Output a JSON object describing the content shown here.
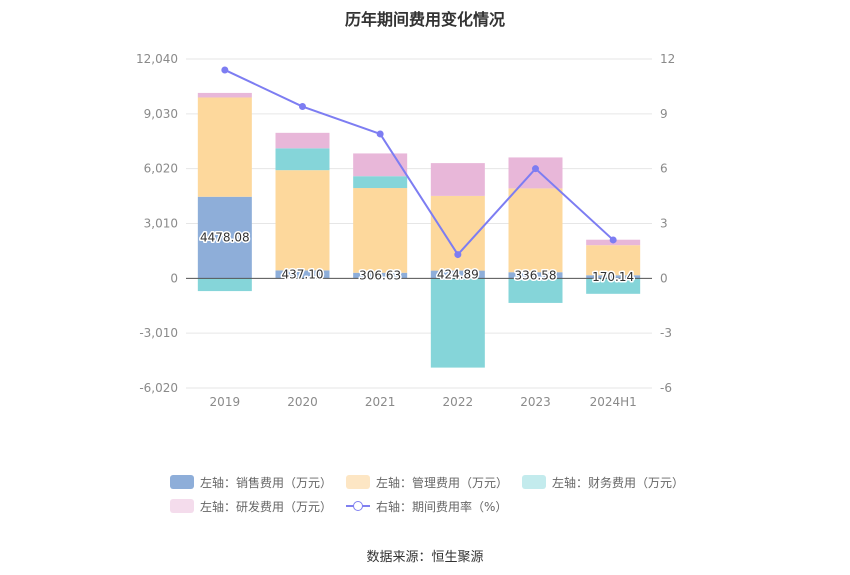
{
  "title": "历年期间费用变化情况",
  "source_text": "数据来源：恒生聚源",
  "colors": {
    "sales": "#8eaed9",
    "admin": "#fdd89c",
    "finance": "#85d5d9",
    "rnd": "#e8b7d9",
    "rate_line": "#7d7df2",
    "grid": "#e6e6e6"
  },
  "legend": [
    {
      "key": "sales",
      "label": "左轴：销售费用（万元）",
      "kind": "bar"
    },
    {
      "key": "admin",
      "label": "左轴：管理费用（万元）",
      "kind": "bar"
    },
    {
      "key": "finance",
      "label": "左轴：财务费用（万元）",
      "kind": "bar"
    },
    {
      "key": "rnd",
      "label": "左轴：研发费用（万元）",
      "kind": "bar"
    },
    {
      "key": "rate_line",
      "label": "右轴：期间费用率（%）",
      "kind": "line"
    }
  ],
  "chart_data": {
    "type": "bar",
    "stacked": true,
    "categories": [
      "2019",
      "2020",
      "2021",
      "2022",
      "2023",
      "2024H1"
    ],
    "y_left": {
      "min": -6020,
      "max": 12040,
      "ticks": [
        -6020,
        -3010,
        0,
        3010,
        6020,
        9030,
        12040
      ],
      "tick_labels": [
        "-6,020",
        "-3,010",
        "0",
        "3,010",
        "6,020",
        "9,030",
        "12,040"
      ]
    },
    "y_right": {
      "min": -6,
      "max": 12,
      "ticks": [
        -6,
        -3,
        0,
        3,
        6,
        9,
        12
      ],
      "tick_labels": [
        "-6",
        "-3",
        "0",
        "3",
        "6",
        "9",
        "12"
      ]
    },
    "series": [
      {
        "name": "左轴：销售费用（万元）",
        "key": "sales",
        "axis": "left",
        "values": [
          4478.08,
          437.1,
          306.63,
          424.89,
          336.58,
          170.14
        ],
        "labels": [
          "4478.08",
          "437.10",
          "306.63",
          "424.89",
          "336.58",
          "170.14"
        ]
      },
      {
        "name": "左轴：管理费用（万元）",
        "key": "admin",
        "axis": "left",
        "values": [
          5450,
          5500,
          4650,
          4100,
          4600,
          1650
        ]
      },
      {
        "name": "左轴：财务费用（万元）",
        "key": "finance",
        "axis": "left",
        "values": [
          -700,
          1200,
          650,
          -4900,
          -1350,
          -850
        ]
      },
      {
        "name": "左轴：研发费用（万元）",
        "key": "rnd",
        "axis": "left",
        "values": [
          250,
          850,
          1250,
          1800,
          1700,
          300
        ]
      },
      {
        "name": "右轴：期间费用率（%）",
        "key": "rate_line",
        "axis": "right",
        "type": "line",
        "values": [
          11.4,
          9.4,
          7.9,
          1.3,
          6.0,
          2.1
        ]
      }
    ],
    "grid": true,
    "legend_position": "bottom"
  }
}
